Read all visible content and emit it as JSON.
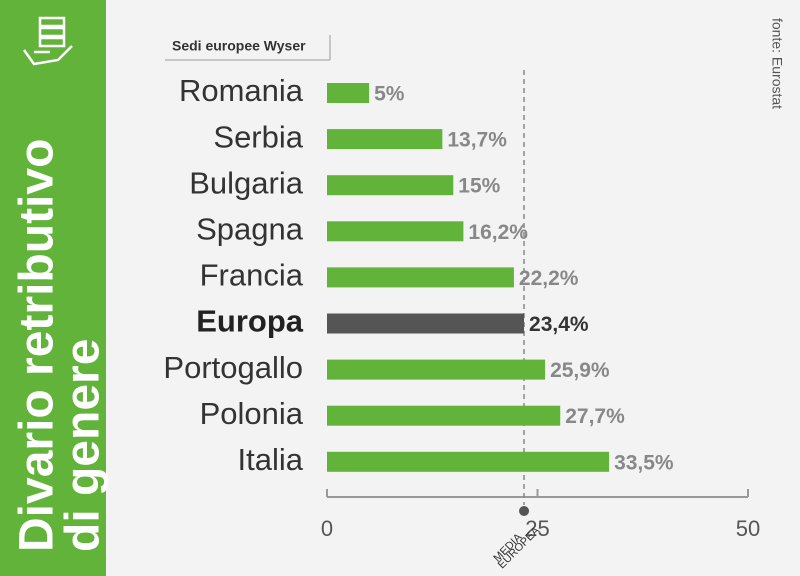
{
  "chart_data": {
    "type": "bar",
    "orientation": "horizontal",
    "title_lines": [
      "Divario retributivo",
      "di genere"
    ],
    "subtitle": "Sedi europee Wyser",
    "source": "fonte: Eurostat",
    "categories": [
      "Romania",
      "Serbia",
      "Bulgaria",
      "Spagna",
      "Francia",
      "Europa",
      "Portogallo",
      "Polonia",
      "Italia"
    ],
    "values": [
      5,
      13.7,
      15,
      16.2,
      22.2,
      23.4,
      25.9,
      27.7,
      33.5
    ],
    "value_labels": [
      "5%",
      "13,7%",
      "15%",
      "16,2%",
      "22,2%",
      "23,4%",
      "25,9%",
      "27,7%",
      "33,5%"
    ],
    "colors": [
      "#62b33a",
      "#62b33a",
      "#62b33a",
      "#62b33a",
      "#62b33a",
      "#555555",
      "#62b33a",
      "#62b33a",
      "#62b33a"
    ],
    "xlim": [
      0,
      50
    ],
    "xticks": [
      0,
      25,
      50
    ],
    "reference_line": {
      "value": 23.4,
      "label_lines": [
        "MEDIA",
        "EUROPEA"
      ]
    }
  }
}
